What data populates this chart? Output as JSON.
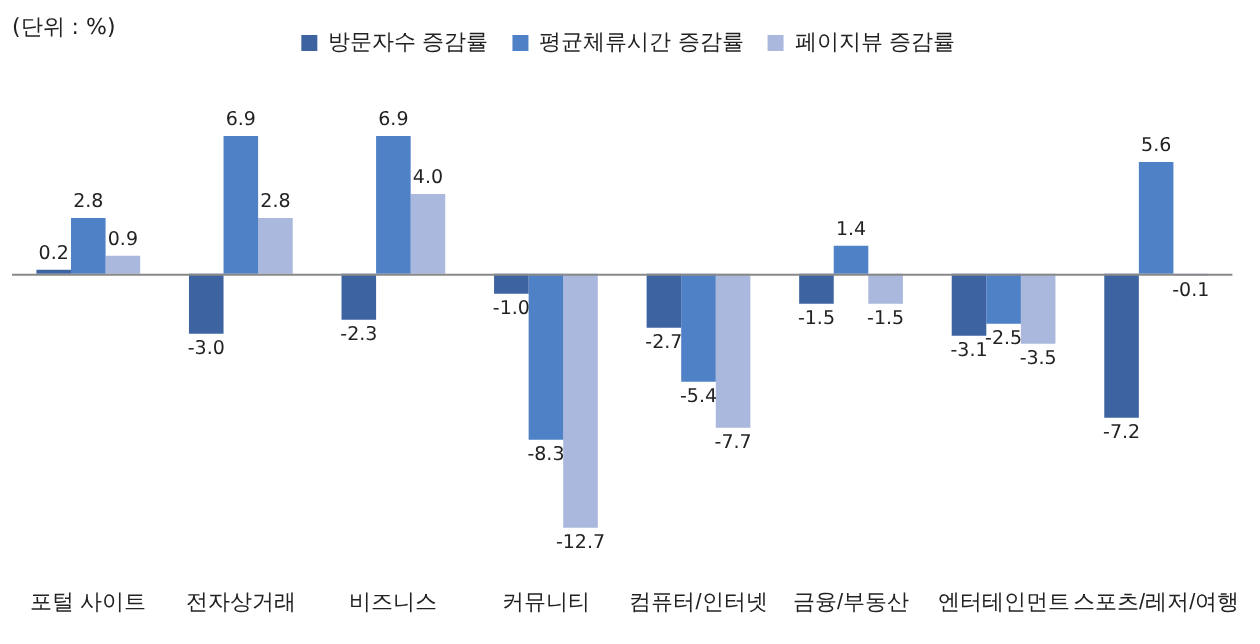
{
  "chart_data": {
    "type": "bar",
    "categories": [
      "포털 사이트",
      "전자상거래",
      "비즈니스",
      "커뮤니티",
      "컴퓨터/인터넷",
      "금융/부동산",
      "엔터테인먼트",
      "스포츠/레저/여행"
    ],
    "series": [
      {
        "name": "방문자수 증감률",
        "color": "#3d64a0",
        "values": [
          0.2,
          -3.0,
          -2.3,
          -1.0,
          -2.7,
          -1.5,
          -3.1,
          -7.2
        ],
        "value_labels": [
          "0.2",
          "-3.0",
          "-2.3",
          "-1.0",
          "-2.7",
          "-1.5",
          "-3.1",
          "-7.2"
        ]
      },
      {
        "name": "평균체류시간 증감률",
        "color": "#4f81c6",
        "values": [
          2.8,
          6.9,
          6.9,
          -8.3,
          -5.4,
          1.4,
          -2.5,
          5.6
        ],
        "value_labels": [
          "2.8",
          "6.9",
          "6.9",
          "-8.3",
          "-5.4",
          "1.4",
          "-2.5",
          "5.6"
        ]
      },
      {
        "name": "페이지뷰 증감률",
        "color": "#a9b8dc",
        "values": [
          0.9,
          2.8,
          4.0,
          -12.7,
          -7.7,
          -1.5,
          -3.5,
          -0.1
        ],
        "value_labels": [
          "0.9",
          "2.8",
          "4.0",
          "-12.7",
          "-7.7",
          "-1.5",
          "-3.5",
          "-0.1"
        ]
      }
    ],
    "legend": "top",
    "annotations": [
      "(단위 : %)"
    ]
  }
}
